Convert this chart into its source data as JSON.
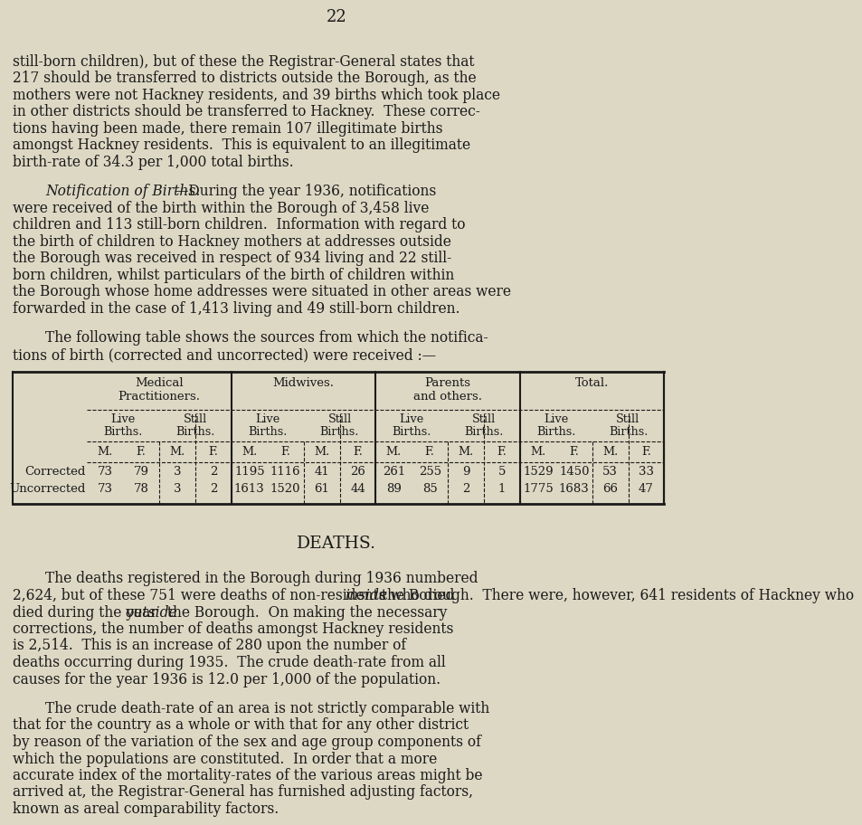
{
  "bg": "#ddd8c4",
  "tc": "#1a1a1a",
  "page_num": "22",
  "p1_lines": [
    "still-born children), but of these the Registrar-General states that",
    "217 should be transferred to districts outside the Borough, as the",
    "mothers were not Hackney residents, and 39 births which took place",
    "in other districts should be transferred to Hackney.  These correc-",
    "tions having been made, there remain 107 illegitimate births",
    "amongst Hackney residents.  This is equivalent to an illegitimate",
    "birth-rate of 34.3 per 1,000 total births."
  ],
  "p2_lines": [
    [
      "italic",
      "Notification of Births.",
      "normal",
      "—During the year 1936, notifications"
    ],
    [
      "normal",
      "were received of the birth within the Borough of 3,458 live"
    ],
    [
      "normal",
      "children and 113 still-born children.  Information with regard to"
    ],
    [
      "normal",
      "the birth of children to Hackney mothers at addresses outside"
    ],
    [
      "normal",
      "the Borough was received in respect of 934 living and 22 still-"
    ],
    [
      "normal",
      "born children, whilst particulars of the birth of children within"
    ],
    [
      "normal",
      "the Borough whose home addresses were situated in other areas were"
    ],
    [
      "normal",
      "forwarded in the case of 1,413 living and 49 still-born children."
    ]
  ],
  "p3_lines": [
    [
      "indent",
      "The following table shows the sources from which the notifica-"
    ],
    [
      "normal",
      "tions of birth (corrected and uncorrected) were received :—"
    ]
  ],
  "p4_lines": [
    [
      "indent",
      "The deaths registered in the Borough during 1936 numbered"
    ],
    [
      "normal_italic_normal",
      "2,624, but of these 751 were deaths of non-residents who died ",
      "inside",
      " the Borough.  There were, however, 641 residents of Hackney who"
    ],
    [
      "normal_italic_normal",
      "died during the year ",
      "outside",
      " the Borough.  On making the necessary"
    ],
    [
      "normal",
      "corrections, the number of deaths amongst Hackney residents"
    ],
    [
      "normal",
      "is 2,514.  This is an increase of 280 upon the number of"
    ],
    [
      "normal",
      "deaths occurring during 1935.  The crude death-rate from all"
    ],
    [
      "normal",
      "causes for the year 1936 is 12.0 per 1,000 of the population."
    ]
  ],
  "p5_lines": [
    [
      "indent",
      "The crude death-rate of an area is not strictly comparable with"
    ],
    [
      "normal",
      "that for the country as a whole or with that for any other district"
    ],
    [
      "normal",
      "by reason of the variation of the sex and age group components of"
    ],
    [
      "normal",
      "which the populations are constituted.  In order that a more"
    ],
    [
      "normal",
      "accurate index of the mortality-rates of the various areas might be"
    ],
    [
      "normal",
      "arrived at, the Registrar-General has furnished adjusting factors,"
    ],
    [
      "normal",
      "known as areal comparability factors."
    ]
  ],
  "table": {
    "col_labels": [
      "Medical\nPractitioners.",
      "Midwives.",
      "Parents\nand others.",
      "Total."
    ],
    "sub_labels": [
      "Live\nBirths.",
      "Still\nBirths.",
      "Live\nBirths.",
      "Still\nBirths.",
      "Live\nBirths.",
      "Still\nBirths.",
      "Live\nBirths.",
      "Still\nBirths."
    ],
    "mf_labels": [
      "M.",
      "F.",
      "M.",
      "F.",
      "M.",
      "F.",
      "M.",
      "F.",
      "M.",
      "F.",
      "M.",
      "F.",
      "M.",
      "F.",
      "M.",
      "F."
    ],
    "rows": [
      [
        "Corrected",
        "73",
        "79",
        "3",
        "2",
        "1195",
        "1116",
        "41",
        "26",
        "261",
        "255",
        "9",
        "5",
        "1529",
        "1450",
        "53",
        "33"
      ],
      [
        "Uncorrected",
        "73",
        "78",
        "3",
        "2",
        "1613",
        "1520",
        "61",
        "44",
        "89",
        "85",
        "2",
        "1",
        "1775",
        "1683",
        "66",
        "47"
      ]
    ]
  }
}
